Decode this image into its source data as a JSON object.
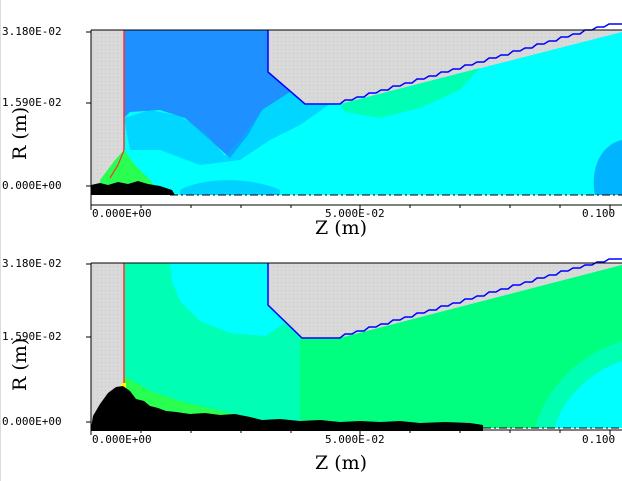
{
  "colors": {
    "background_gray": "#d9d9d9",
    "dark_blue_region": "#1e90ff",
    "mid_blue_region": "#00b4ff",
    "cyan_region": "#00ffff",
    "aqua_green_region": "#00ffb4",
    "green_region": "#00ff7f",
    "light_green_region": "#28ff50",
    "conductor_outline": "#0000ff",
    "emitter_line": "#ff3030",
    "particle_fill": "#000000",
    "hot_spot": "#ffff00"
  },
  "panels": [
    {
      "r_axis_label": "R (m)",
      "z_axis_label": "Z (m)",
      "r_ticks": [
        "3.180E-02",
        "1.590E-02",
        "0.000E+00"
      ],
      "z_ticks": [
        "0.000E+00",
        "5.000E-02",
        "0.100"
      ]
    },
    {
      "r_axis_label": "R (m)",
      "z_axis_label": "Z (m)",
      "r_ticks": [
        "3.180E-02",
        "1.590E-02",
        "0.000E+00"
      ],
      "z_ticks": [
        "0.000E+00",
        "5.000E-02",
        "0.100"
      ]
    }
  ]
}
